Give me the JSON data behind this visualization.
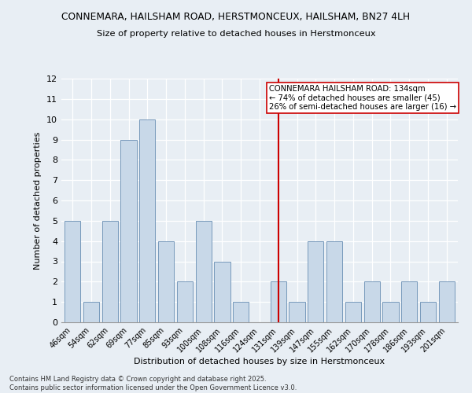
{
  "title_line1": "CONNEMARA, HAILSHAM ROAD, HERSTMONCEUX, HAILSHAM, BN27 4LH",
  "title_line2": "Size of property relative to detached houses in Herstmonceux",
  "xlabel": "Distribution of detached houses by size in Herstmonceux",
  "ylabel": "Number of detached properties",
  "categories": [
    "46sqm",
    "54sqm",
    "62sqm",
    "69sqm",
    "77sqm",
    "85sqm",
    "93sqm",
    "100sqm",
    "108sqm",
    "116sqm",
    "124sqm",
    "131sqm",
    "139sqm",
    "147sqm",
    "155sqm",
    "162sqm",
    "170sqm",
    "178sqm",
    "186sqm",
    "193sqm",
    "201sqm"
  ],
  "values": [
    5,
    1,
    5,
    9,
    10,
    4,
    2,
    5,
    3,
    1,
    0,
    2,
    1,
    4,
    4,
    1,
    2,
    1,
    2,
    1,
    2
  ],
  "bar_color": "#c8d8e8",
  "bar_edge_color": "#7799bb",
  "vline_index": 11,
  "vline_color": "#cc0000",
  "annotation_text": "CONNEMARA HAILSHAM ROAD: 134sqm\n← 74% of detached houses are smaller (45)\n26% of semi-detached houses are larger (16) →",
  "annotation_box_color": "white",
  "annotation_box_edge": "#cc0000",
  "ylim": [
    0,
    12
  ],
  "yticks": [
    0,
    1,
    2,
    3,
    4,
    5,
    6,
    7,
    8,
    9,
    10,
    11,
    12
  ],
  "background_color": "#e8eef4",
  "footer_line1": "Contains HM Land Registry data © Crown copyright and database right 2025.",
  "footer_line2": "Contains public sector information licensed under the Open Government Licence v3.0."
}
